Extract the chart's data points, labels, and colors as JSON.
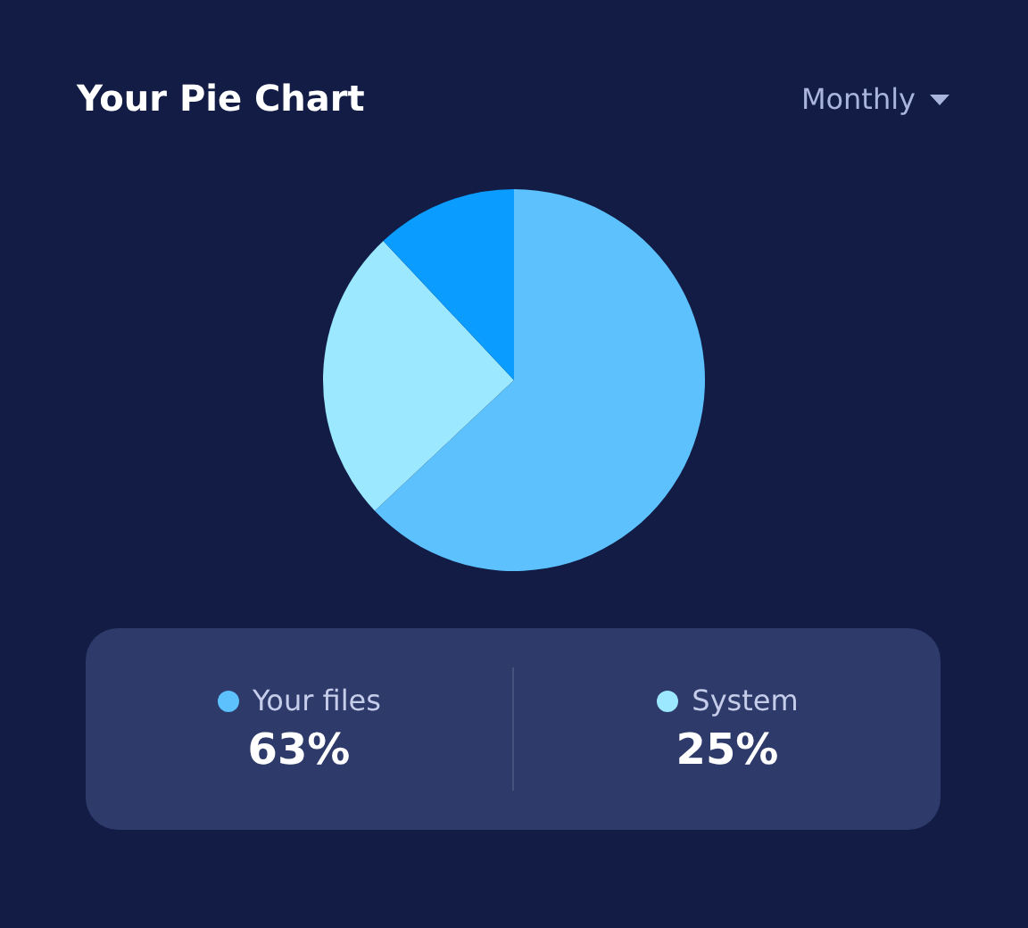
{
  "chart_data": {
    "type": "pie",
    "title": "Your Pie Chart",
    "annotations": [
      "Monthly"
    ],
    "categories": [
      "Your files",
      "System",
      null
    ],
    "values": [
      63,
      25,
      12
    ],
    "colors": [
      "#5cc1fd",
      "#9ce9ff",
      "#0a9cff"
    ],
    "value_labels": [
      "63%",
      "25%",
      null
    ],
    "legend": "bottom"
  }
}
